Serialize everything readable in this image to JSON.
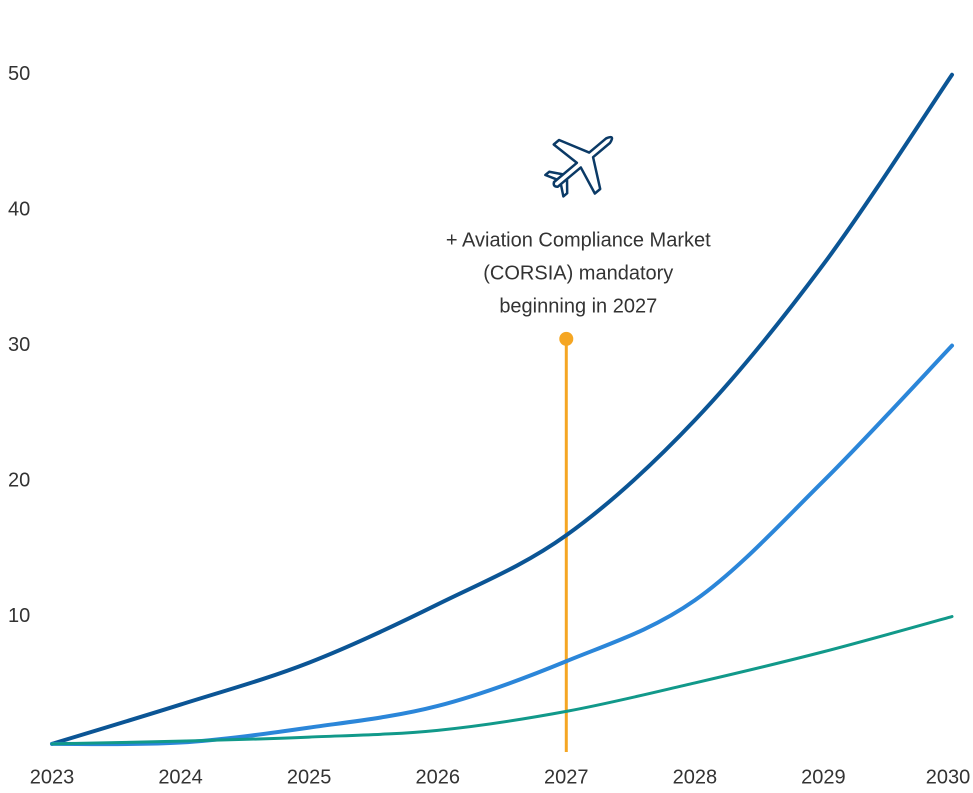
{
  "chart_data": {
    "type": "line",
    "x": [
      2023,
      2024,
      2025,
      2026,
      2027,
      2028,
      2029,
      2030
    ],
    "xlim": [
      2023,
      2030
    ],
    "xticks": [
      2023,
      2024,
      2025,
      2026,
      2027,
      2028,
      2029,
      2030
    ],
    "ylim": [
      0,
      55
    ],
    "yticks": [
      10,
      20,
      30,
      40,
      50
    ],
    "series": [
      {
        "color": "#0b5595",
        "values": [
          0.6,
          3.5,
          6.6,
          10.9,
          16,
          24.5,
          36,
          50
        ]
      },
      {
        "color": "#2b86d9",
        "values": [
          0.6,
          0.7,
          1.8,
          3.4,
          6.7,
          11.2,
          20,
          30
        ]
      },
      {
        "color": "#11998a",
        "values": [
          0.6,
          0.8,
          1.1,
          1.6,
          3,
          5.1,
          7.4,
          10
        ]
      }
    ],
    "annotation": {
      "lines": [
        "+ Aviation Compliance Market",
        "(CORSIA) mandatory",
        "beginning in 2027"
      ],
      "x": 2027,
      "y": 30.5,
      "color": "#f5a623"
    }
  }
}
